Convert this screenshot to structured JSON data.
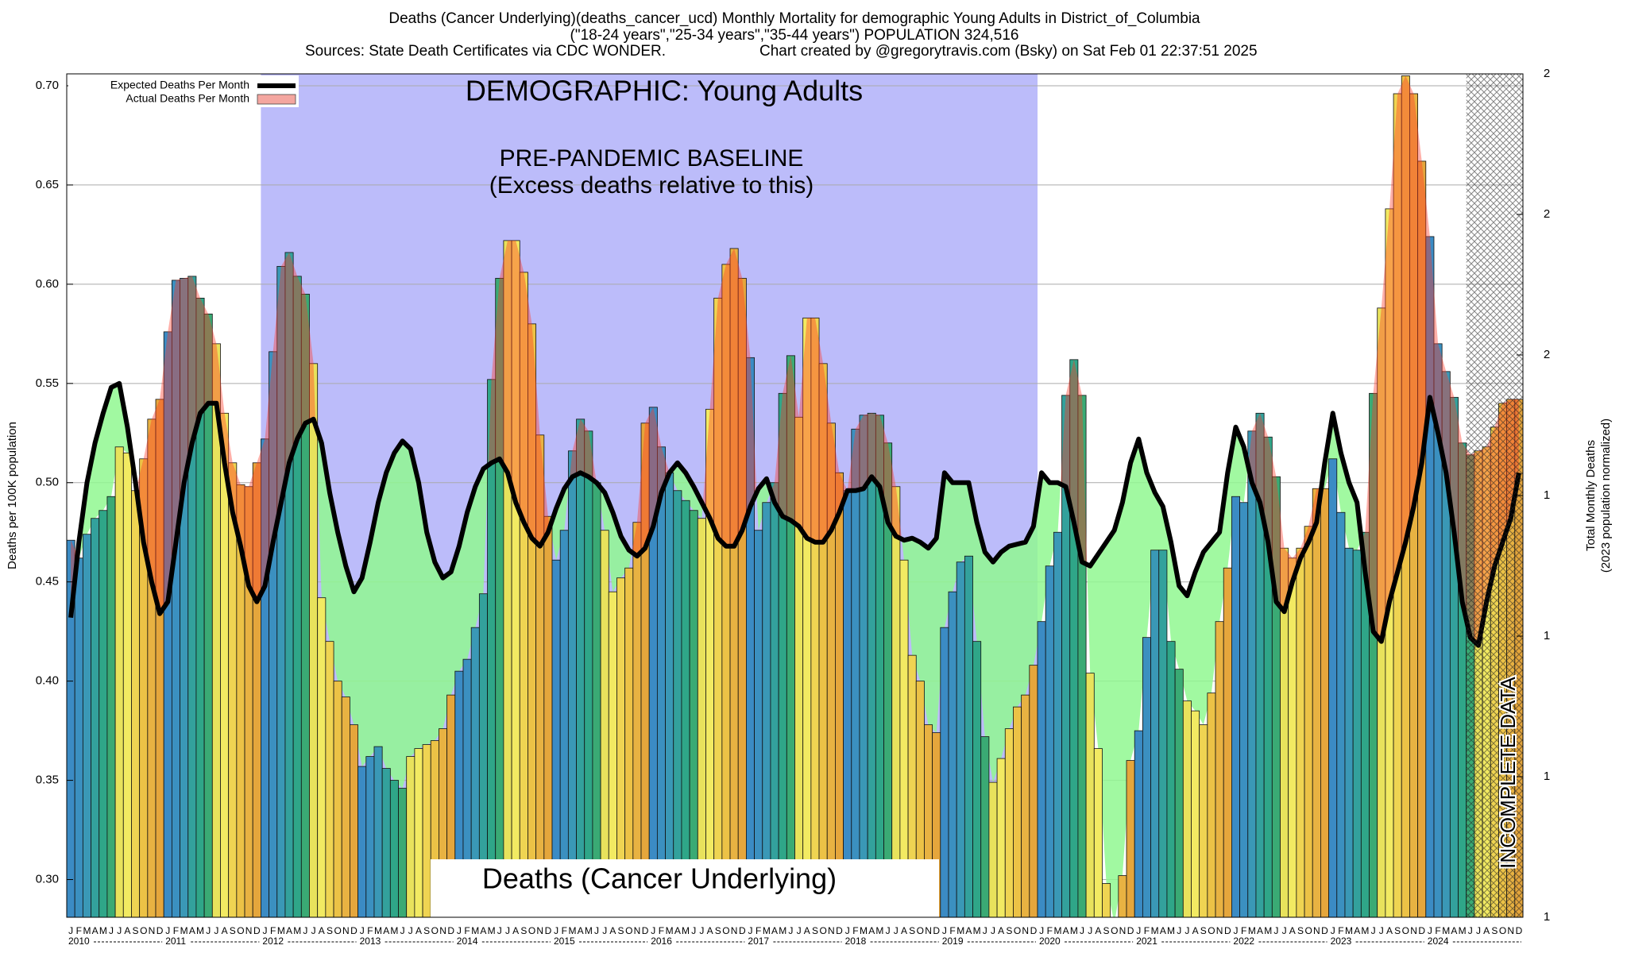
{
  "chart_data": {
    "type": "bar",
    "title": "Deaths (Cancer Underlying)(deaths_cancer_ucd) Monthly Mortality for demographic Young Adults in District_of_Columbia",
    "subtitle": "(\"18-24 years\",\"25-34 years\",\"35-44 years\") POPULATION 324,516",
    "sources": "Sources: State Death Certificates via CDC WONDER.",
    "credit": "Chart created by @gregorytravis.com (Bsky) on Sat Feb 01 22:37:51 2025",
    "demographic_label": "DEMOGRAPHIC: Young Adults",
    "baseline_label": [
      "PRE-PANDEMIC BASELINE",
      "(Excess deaths relative to this)"
    ],
    "cause_label": "Deaths (Cancer Underlying)",
    "incomplete_label": "INCOMPLETE DATA",
    "ylabel": "Deaths per 100K population",
    "y2label": [
      "Total Monthly Deaths",
      "(2023 population normalized)"
    ],
    "categories": [
      "J",
      "F",
      "M",
      "A",
      "M",
      "J",
      "J",
      "A",
      "S",
      "O",
      "N",
      "D",
      "J",
      "F",
      "M",
      "A",
      "M",
      "J",
      "J",
      "A",
      "S",
      "O",
      "N",
      "D",
      "J",
      "F",
      "M",
      "A",
      "M",
      "J",
      "J",
      "A",
      "S",
      "O",
      "N",
      "D",
      "J",
      "F",
      "M",
      "A",
      "M",
      "J",
      "J",
      "A",
      "S",
      "O",
      "N",
      "D",
      "J",
      "F",
      "M",
      "A",
      "M",
      "J",
      "J",
      "A",
      "S",
      "O",
      "N",
      "D",
      "J",
      "F",
      "M",
      "A",
      "M",
      "J",
      "J",
      "A",
      "S",
      "O",
      "N",
      "D",
      "J",
      "F",
      "M",
      "A",
      "M",
      "J",
      "J",
      "A",
      "S",
      "O",
      "N",
      "D",
      "J",
      "F",
      "M",
      "A",
      "M",
      "J",
      "J",
      "A",
      "S",
      "O",
      "N",
      "D",
      "J",
      "F",
      "M",
      "A",
      "M",
      "J",
      "J",
      "A",
      "S",
      "O",
      "N",
      "D",
      "J",
      "F",
      "M",
      "A",
      "M",
      "J",
      "J",
      "A",
      "S",
      "O",
      "N",
      "D",
      "J",
      "F",
      "M",
      "A",
      "M",
      "J",
      "J",
      "A",
      "S",
      "O",
      "N",
      "D",
      "J",
      "F",
      "M",
      "A",
      "M",
      "J",
      "J",
      "A",
      "S",
      "O",
      "N",
      "D",
      "J",
      "F",
      "M",
      "A",
      "M",
      "J",
      "J",
      "A",
      "S",
      "O",
      "N",
      "D",
      "J",
      "F",
      "M",
      "A",
      "M",
      "J",
      "J",
      "A",
      "S",
      "O",
      "N",
      "D",
      "J",
      "F",
      "M",
      "A",
      "M",
      "J",
      "J",
      "A",
      "S",
      "O",
      "N",
      "D"
    ],
    "year_labels": [
      "2010",
      "2011",
      "2012",
      "2013",
      "2014",
      "2015",
      "2016",
      "2017",
      "2018",
      "2019",
      "2020",
      "2021",
      "2022",
      "2023",
      "2024"
    ],
    "series": [
      {
        "name": "Expected Deaths Per Month",
        "color": "#000000",
        "values": [
          0.432,
          0.47,
          0.5,
          0.52,
          0.535,
          0.548,
          0.55,
          0.528,
          0.5,
          0.47,
          0.45,
          0.434,
          0.44,
          0.47,
          0.5,
          0.52,
          0.535,
          0.54,
          0.54,
          0.51,
          0.485,
          0.468,
          0.448,
          0.44,
          0.448,
          0.47,
          0.49,
          0.51,
          0.522,
          0.53,
          0.532,
          0.52,
          0.495,
          0.475,
          0.458,
          0.445,
          0.452,
          0.47,
          0.49,
          0.505,
          0.515,
          0.521,
          0.517,
          0.5,
          0.475,
          0.46,
          0.452,
          0.455,
          0.468,
          0.485,
          0.498,
          0.507,
          0.51,
          0.512,
          0.505,
          0.49,
          0.48,
          0.472,
          0.468,
          0.475,
          0.487,
          0.497,
          0.503,
          0.505,
          0.503,
          0.5,
          0.495,
          0.485,
          0.473,
          0.466,
          0.463,
          0.467,
          0.478,
          0.495,
          0.505,
          0.51,
          0.505,
          0.498,
          0.49,
          0.482,
          0.472,
          0.468,
          0.468,
          0.476,
          0.488,
          0.497,
          0.502,
          0.49,
          0.483,
          0.481,
          0.478,
          0.472,
          0.47,
          0.47,
          0.476,
          0.485,
          0.496,
          0.496,
          0.497,
          0.503,
          0.498,
          0.48,
          0.473,
          0.471,
          0.472,
          0.47,
          0.467,
          0.472,
          0.505,
          0.5,
          0.5,
          0.5,
          0.48,
          0.465,
          0.46,
          0.465,
          0.468,
          0.469,
          0.47,
          0.478,
          0.505,
          0.5,
          0.5,
          0.498,
          0.48,
          0.46,
          0.458,
          0.464,
          0.47,
          0.476,
          0.49,
          0.51,
          0.522,
          0.505,
          0.495,
          0.488,
          0.47,
          0.448,
          0.443,
          0.455,
          0.465,
          0.47,
          0.475,
          0.505,
          0.528,
          0.518,
          0.5,
          0.49,
          0.47,
          0.44,
          0.435,
          0.45,
          0.462,
          0.47,
          0.48,
          0.51,
          0.535,
          0.515,
          0.5,
          0.49,
          0.455,
          0.425,
          0.42,
          0.44,
          0.455,
          0.47,
          0.488,
          0.51,
          0.543,
          0.525,
          0.505,
          0.475,
          0.44,
          0.422,
          0.418,
          0.44,
          0.458,
          0.47,
          0.482,
          0.505
        ]
      },
      {
        "name": "Actual Deaths Per Month",
        "color": "#f4a6a0",
        "values": [
          0.471,
          0.462,
          0.474,
          0.482,
          0.486,
          0.493,
          0.518,
          0.515,
          0.496,
          0.512,
          0.532,
          0.542,
          0.576,
          0.602,
          0.603,
          0.604,
          0.593,
          0.585,
          0.57,
          0.535,
          0.51,
          0.499,
          0.498,
          0.51,
          0.522,
          0.566,
          0.609,
          0.616,
          0.604,
          0.595,
          0.56,
          0.442,
          0.42,
          0.4,
          0.392,
          0.378,
          0.357,
          0.362,
          0.367,
          0.356,
          0.35,
          0.346,
          0.362,
          0.366,
          0.368,
          0.37,
          0.376,
          0.393,
          0.405,
          0.411,
          0.427,
          0.444,
          0.552,
          0.603,
          0.622,
          0.622,
          0.606,
          0.58,
          0.524,
          0.483,
          0.461,
          0.476,
          0.516,
          0.532,
          0.526,
          0.5,
          0.476,
          0.445,
          0.452,
          0.457,
          0.48,
          0.53,
          0.538,
          0.518,
          0.505,
          0.496,
          0.491,
          0.486,
          0.482,
          0.537,
          0.593,
          0.61,
          0.618,
          0.603,
          0.563,
          0.476,
          0.49,
          0.5,
          0.545,
          0.564,
          0.533,
          0.583,
          0.583,
          0.56,
          0.53,
          0.505,
          0.496,
          0.527,
          0.534,
          0.535,
          0.534,
          0.52,
          0.498,
          0.461,
          0.413,
          0.4,
          0.378,
          0.374,
          0.427,
          0.445,
          0.46,
          0.463,
          0.42,
          0.372,
          0.349,
          0.361,
          0.376,
          0.387,
          0.393,
          0.408,
          0.43,
          0.458,
          0.475,
          0.544,
          0.562,
          0.544,
          0.404,
          0.366,
          0.298,
          0.278,
          0.302,
          0.36,
          0.375,
          0.422,
          0.466,
          0.466,
          0.42,
          0.406,
          0.39,
          0.385,
          0.378,
          0.394,
          0.43,
          0.457,
          0.493,
          0.49,
          0.526,
          0.535,
          0.523,
          0.503,
          0.467,
          0.462,
          0.467,
          0.478,
          0.497,
          0.497,
          0.512,
          0.485,
          0.467,
          0.466,
          0.475,
          0.545,
          0.588,
          0.638,
          0.696,
          0.705,
          0.696,
          0.662,
          0.624,
          0.57,
          0.556,
          0.543,
          0.52,
          0.514,
          0.516,
          0.518,
          0.528,
          0.54,
          0.542,
          0.542
        ]
      }
    ],
    "month_colors": [
      "#3b8bc4",
      "#3b90c0",
      "#3a98b6",
      "#33a19c",
      "#2fa688",
      "#3aaa74",
      "#e8e25c",
      "#f2ea62",
      "#efd452",
      "#ecc246",
      "#e8b242",
      "#e5a63c"
    ],
    "excess_color": "#ff3a28",
    "deficit_color": "#90f890",
    "baseline_color": "#bcbcfa",
    "baseline_years": [
      "2012",
      "2019"
    ],
    "incomplete_months": 7,
    "grid": true,
    "legend": "upper left",
    "ylim": [
      0.281,
      0.706
    ],
    "yticks": [
      {
        "value": 0.3,
        "label": "0.30"
      },
      {
        "value": 0.35,
        "label": "0.35"
      },
      {
        "value": 0.4,
        "label": "0.40"
      },
      {
        "value": 0.45,
        "label": "0.45"
      },
      {
        "value": 0.5,
        "label": "0.50"
      },
      {
        "value": 0.55,
        "label": "0.55"
      },
      {
        "value": 0.6,
        "label": "0.60"
      },
      {
        "value": 0.65,
        "label": "0.65"
      },
      {
        "value": 0.7,
        "label": "0.70"
      }
    ],
    "y2lim": [
      0.8,
      2.0
    ],
    "y2ticks": [
      {
        "value": 0.8,
        "label": "1"
      },
      {
        "value": 1.0,
        "label": "1"
      },
      {
        "value": 1.2,
        "label": "1"
      },
      {
        "value": 1.4,
        "label": "1"
      },
      {
        "value": 1.6,
        "label": "2"
      },
      {
        "value": 1.8,
        "label": "2"
      },
      {
        "value": 2.0,
        "label": "2"
      }
    ]
  }
}
